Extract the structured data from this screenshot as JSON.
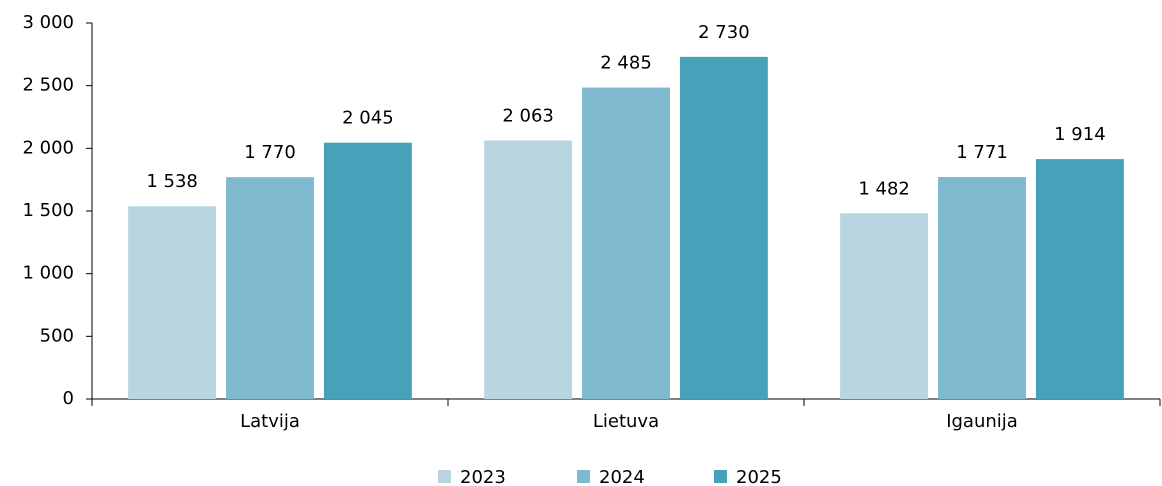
{
  "chart_data": {
    "type": "bar",
    "categories": [
      "Latvija",
      "Lietuva",
      "Igaunija"
    ],
    "series": [
      {
        "name": "2023",
        "color": "#b8d5e0",
        "values": [
          1538,
          2063,
          1482
        ],
        "value_labels": [
          "1 538",
          "2 063",
          "1 482"
        ]
      },
      {
        "name": "2024",
        "color": "#7fb9cf",
        "values": [
          1770,
          2485,
          1771
        ],
        "value_labels": [
          "1 770",
          "2 485",
          "1 771"
        ]
      },
      {
        "name": "2025",
        "color": "#47a2b9",
        "values": [
          2045,
          2730,
          1914
        ],
        "value_labels": [
          "2 045",
          "2 730",
          "1 914"
        ]
      }
    ],
    "ylim": [
      0,
      3000
    ],
    "yticks": [
      0,
      500,
      {
        "value": 1000,
        "label": "1 000"
      },
      {
        "value": 1500,
        "label": "1 500"
      },
      {
        "value": 2000,
        "label": "2 000"
      },
      {
        "value": 2500,
        "label": "2 500"
      },
      {
        "value": 3000,
        "label": "3 000"
      }
    ],
    "grid": false,
    "legend": "bottom"
  }
}
